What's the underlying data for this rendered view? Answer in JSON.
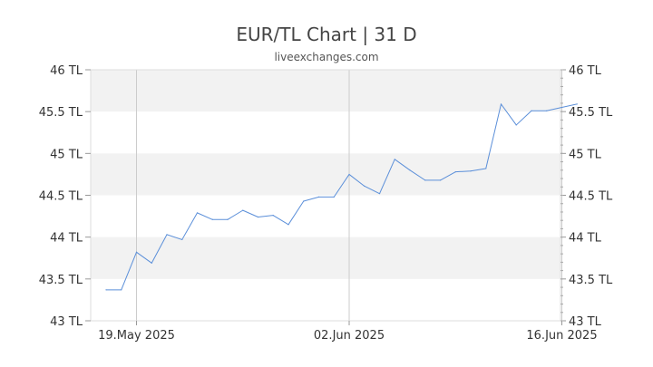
{
  "chart_data": {
    "type": "line",
    "title": "EUR/TL Chart | 31 D",
    "subtitle": "liveexchanges.com",
    "xlabel": "",
    "ylabel": "",
    "ylim": [
      43,
      46
    ],
    "yticks": [
      "43 TL",
      "43.5 TL",
      "44 TL",
      "44.5 TL",
      "45 TL",
      "45.5 TL",
      "46 TL"
    ],
    "ytick_values": [
      43,
      43.5,
      44,
      44.5,
      45,
      45.5,
      46
    ],
    "xticks": [
      {
        "label": "19.May 2025",
        "date": "2025-05-19"
      },
      {
        "label": "02.Jun 2025",
        "date": "2025-06-02"
      },
      {
        "label": "16.Jun 2025",
        "date": "2025-06-16"
      }
    ],
    "grid": "alternating horizontal bands, vertical lines at date ticks",
    "line_color": "#5b8fd9",
    "series": [
      {
        "name": "",
        "x": [
          "2025-05-17",
          "2025-05-18",
          "2025-05-19",
          "2025-05-20",
          "2025-05-21",
          "2025-05-22",
          "2025-05-23",
          "2025-05-24",
          "2025-05-25",
          "2025-05-26",
          "2025-05-27",
          "2025-05-28",
          "2025-05-29",
          "2025-05-30",
          "2025-05-31",
          "2025-06-01",
          "2025-06-02",
          "2025-06-03",
          "2025-06-04",
          "2025-06-05",
          "2025-06-06",
          "2025-06-07",
          "2025-06-08",
          "2025-06-09",
          "2025-06-10",
          "2025-06-11",
          "2025-06-12",
          "2025-06-13",
          "2025-06-14",
          "2025-06-15",
          "2025-06-16",
          "2025-06-17"
        ],
        "values": [
          43.37,
          43.37,
          43.82,
          43.69,
          44.03,
          43.97,
          44.29,
          44.21,
          44.21,
          44.32,
          44.24,
          44.26,
          44.15,
          44.43,
          44.48,
          44.48,
          44.75,
          44.61,
          44.52,
          44.93,
          44.8,
          44.68,
          44.68,
          44.78,
          44.79,
          44.82,
          45.59,
          45.34,
          45.51,
          45.51,
          45.55,
          45.59
        ]
      }
    ]
  }
}
